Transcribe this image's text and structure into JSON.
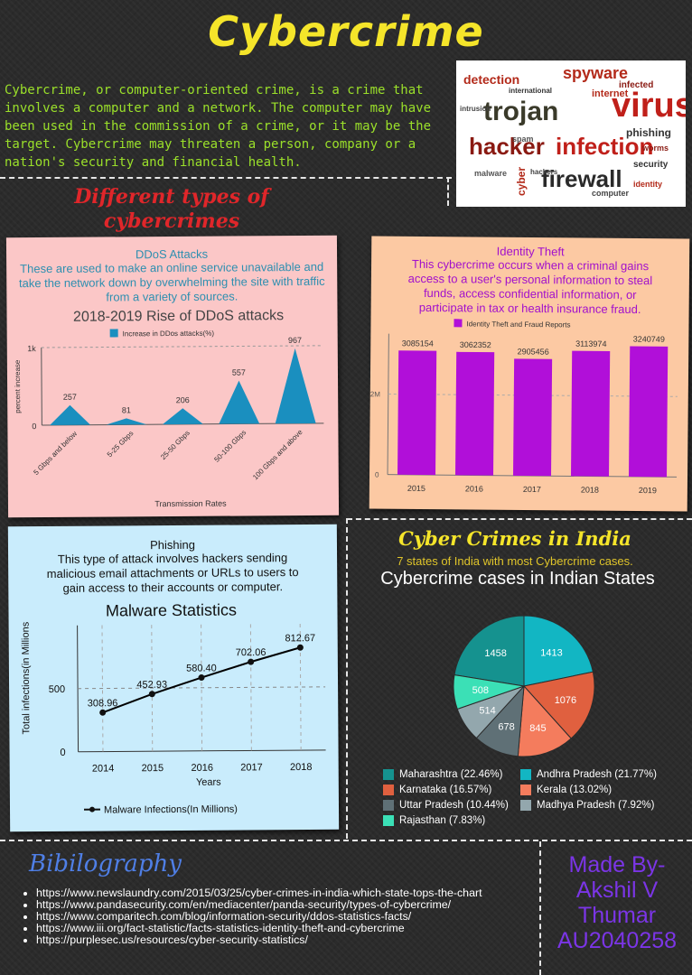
{
  "title": "Cybercrime",
  "intro": "Cybercrime, or computer-oriented crime, is a crime that involves a computer and a network. The computer may have been used in the commission of a crime, or it may be the target. Cybercrime may threaten a person, company or a nation's security and financial health.",
  "wordcloud": {
    "words": [
      "detection",
      "spyware",
      "virus",
      "trojan",
      "hacker",
      "infection",
      "firewall",
      "international",
      "internet",
      "infected",
      "phishing",
      "malware",
      "cyber",
      "spam",
      "security",
      "worms",
      "hackers",
      "computer",
      "identity",
      "intrusion"
    ]
  },
  "types_title_line1": "Different types of",
  "types_title_line2": "cybercrimes",
  "ddos": {
    "heading": "DDoS Attacks",
    "description": "These are used to make an online service unavailable and take the network down by overwhelming the site with traffic from a variety of sources.",
    "chart_title": "2018-2019 Rise of DDoS attacks"
  },
  "identity": {
    "heading": "Identity Theft",
    "description": "This cybercrime occurs when a criminal gains access to a user's personal information to steal funds, access confidential information, or participate in tax or health insurance fraud."
  },
  "phishing": {
    "heading": "Phishing",
    "description": "This type of attack involves hackers sending malicious email attachments or URLs to users to gain access to their accounts or computer.",
    "chart_title": "Malware Statistics"
  },
  "india": {
    "title": "Cyber Crimes in India",
    "subtitle": "7 states of India with most Cybercrime cases.",
    "chart_title": "Cybercrime cases in Indian States"
  },
  "bibliography": {
    "title": "Bibilography",
    "items": [
      "https://www.newslaundry.com/2015/03/25/cyber-crimes-in-india-which-state-tops-the-chart",
      "https://www.pandasecurity.com/en/mediacenter/panda-security/types-of-cybercrime/",
      "https://www.comparitech.com/blog/information-security/ddos-statistics-facts/",
      "https://www.iii.org/fact-statistic/facts-statistics-identity-theft-and-cybercrime",
      "https://purplesec.us/resources/cyber-security-statistics/"
    ]
  },
  "made_by": {
    "line1": "Made By-",
    "line2": "Akshil V",
    "line3": "Thumar",
    "line4": "AU2040258"
  },
  "chart_data": [
    {
      "type": "area",
      "title": "2018-2019 Rise of DDoS attacks",
      "xlabel": "Transmission Rates",
      "ylabel": "percent increase",
      "categories": [
        "5 Gbps and below",
        "5-25 Gbps",
        "25-50 Gbps",
        "50-100 Gbps",
        "100 Gbps and above"
      ],
      "series": [
        {
          "name": "Increase in DDos attacks(%)",
          "values": [
            257,
            81,
            206,
            557,
            967
          ]
        }
      ],
      "ylim": [
        0,
        1000
      ],
      "yticks": [
        "0",
        "1k"
      ],
      "color": "#1a8fbf",
      "legend": "top"
    },
    {
      "type": "bar",
      "title": "",
      "categories": [
        "2015",
        "2016",
        "2017",
        "2018",
        "2019"
      ],
      "series": [
        {
          "name": "Identity Theft and Fraud Reports",
          "values": [
            3085154,
            3062352,
            2905456,
            3113974,
            3240749
          ]
        }
      ],
      "ylim": [
        0,
        3500000
      ],
      "yticks": [
        "0",
        "2M"
      ],
      "color": "#b10fd9",
      "legend": "top"
    },
    {
      "type": "line",
      "title": "Malware Statistics",
      "xlabel": "Years",
      "ylabel": "Total infections(in Millions",
      "categories": [
        "2014",
        "2015",
        "2016",
        "2017",
        "2018"
      ],
      "series": [
        {
          "name": "Malware Infections(In Millions)",
          "values": [
            308.96,
            452.93,
            580.4,
            702.06,
            812.67
          ],
          "labels": [
            "308.96",
            "452.93",
            "580.40",
            "702.06",
            "812.67"
          ]
        }
      ],
      "ylim": [
        0,
        1000
      ],
      "yticks": [
        "0",
        "500"
      ],
      "color": "#000000",
      "legend": "bottom"
    },
    {
      "type": "pie",
      "title": "Cybercrime cases in Indian States",
      "categories": [
        "Maharashtra",
        "Andhra Pradesh",
        "Karnataka",
        "Kerala",
        "Uttar Pradesh",
        "Madhya Pradesh",
        "Rajasthan"
      ],
      "values": [
        1458,
        1413,
        1076,
        845,
        678,
        514,
        508
      ],
      "legend_labels": [
        "Maharashtra (22.46%)",
        "Andhra Pradesh (21.77%)",
        "Karnataka (16.57%)",
        "Kerala (13.02%)",
        "Uttar Pradesh (10.44%)",
        "Madhya Pradesh (7.92%)",
        "Rajasthan (7.83%)"
      ],
      "colors": [
        "#15928f",
        "#12b6c3",
        "#e0603f",
        "#f47c5d",
        "#5f7076",
        "#93a7ad",
        "#3be0b6"
      ],
      "legend": "bottom"
    }
  ]
}
